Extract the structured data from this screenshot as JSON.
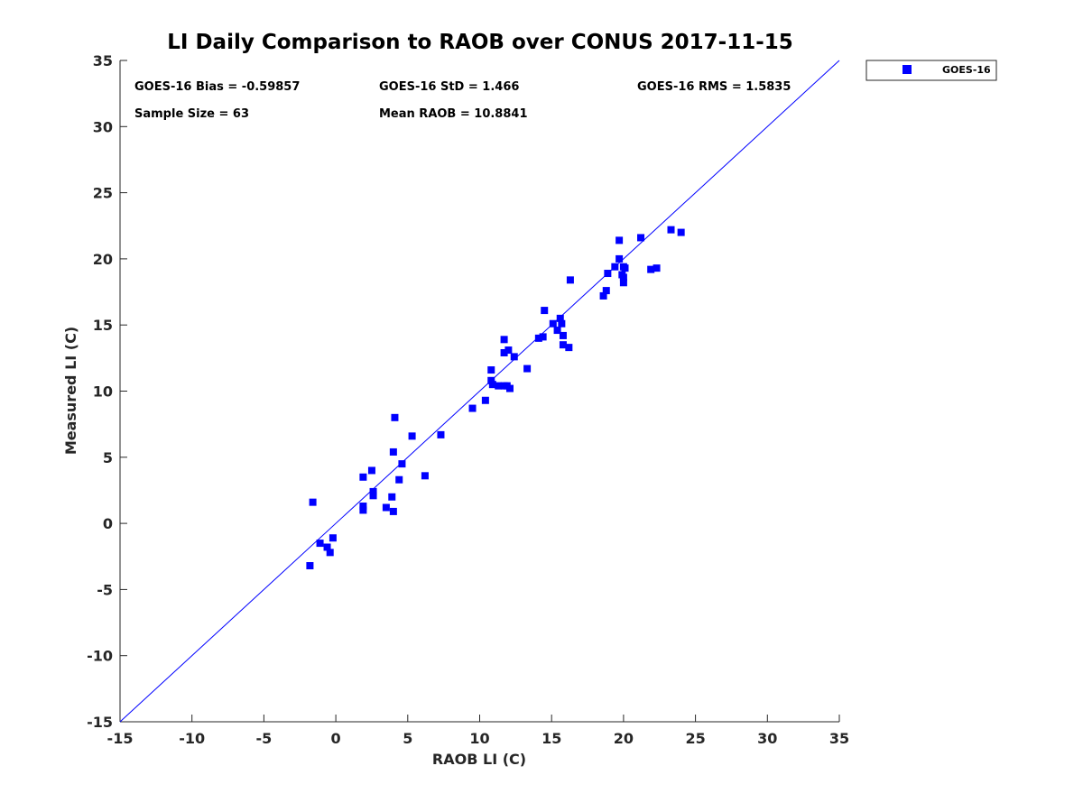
{
  "chart_data": {
    "type": "scatter",
    "title": "LI Daily Comparison to RAOB over CONUS 2017-11-15",
    "xlabel": "RAOB LI (C)",
    "ylabel": "Measured LI (C)",
    "xlim": [
      -15,
      35
    ],
    "ylim": [
      -15,
      35
    ],
    "xticks": [
      "-15",
      "-10",
      "-5",
      "0",
      "5",
      "10",
      "15",
      "20",
      "25",
      "30",
      "35"
    ],
    "yticks": [
      "-15",
      "-10",
      "-5",
      "0",
      "5",
      "10",
      "15",
      "20",
      "25",
      "30",
      "35"
    ],
    "legend": {
      "position": "top-right-outside",
      "entries": [
        "GOES-16"
      ]
    },
    "stats": {
      "bias": "GOES-16 Bias = -0.59857",
      "std": "GOES-16 StD = 1.466",
      "rms": "GOES-16 RMS = 1.5835",
      "sample_size": "Sample Size = 63",
      "mean_raob": "Mean RAOB = 10.8841"
    },
    "reference_line": {
      "from": [
        -15,
        -15
      ],
      "to": [
        35,
        35
      ],
      "color": "#0000ff"
    },
    "series": [
      {
        "name": "GOES-16",
        "color": "#0000ff",
        "marker": "square",
        "points": [
          [
            -1.6,
            1.6
          ],
          [
            -1.8,
            -3.2
          ],
          [
            -1.1,
            -1.5
          ],
          [
            -0.6,
            -1.8
          ],
          [
            -0.4,
            -2.2
          ],
          [
            -0.2,
            -1.1
          ],
          [
            1.9,
            3.5
          ],
          [
            1.9,
            1.3
          ],
          [
            1.9,
            1.0
          ],
          [
            2.5,
            4.0
          ],
          [
            2.6,
            2.4
          ],
          [
            2.6,
            2.1
          ],
          [
            3.5,
            1.2
          ],
          [
            3.9,
            2.0
          ],
          [
            4.0,
            5.4
          ],
          [
            4.0,
            0.9
          ],
          [
            4.1,
            8.0
          ],
          [
            4.4,
            3.3
          ],
          [
            4.6,
            4.5
          ],
          [
            5.3,
            6.6
          ],
          [
            6.2,
            3.6
          ],
          [
            7.3,
            6.7
          ],
          [
            9.5,
            8.7
          ],
          [
            10.4,
            9.3
          ],
          [
            10.8,
            11.6
          ],
          [
            10.8,
            10.8
          ],
          [
            10.9,
            10.5
          ],
          [
            11.3,
            10.4
          ],
          [
            11.7,
            10.4
          ],
          [
            11.7,
            13.9
          ],
          [
            11.7,
            12.9
          ],
          [
            11.9,
            10.4
          ],
          [
            12.0,
            13.1
          ],
          [
            12.1,
            10.2
          ],
          [
            12.4,
            12.6
          ],
          [
            13.3,
            11.7
          ],
          [
            14.1,
            14.0
          ],
          [
            14.4,
            14.1
          ],
          [
            14.5,
            16.1
          ],
          [
            15.1,
            15.1
          ],
          [
            15.4,
            14.6
          ],
          [
            15.6,
            15.5
          ],
          [
            15.7,
            15.1
          ],
          [
            15.8,
            14.2
          ],
          [
            15.8,
            13.5
          ],
          [
            16.2,
            13.3
          ],
          [
            16.3,
            18.4
          ],
          [
            18.6,
            17.2
          ],
          [
            18.8,
            17.6
          ],
          [
            18.9,
            18.9
          ],
          [
            19.4,
            19.4
          ],
          [
            19.7,
            21.4
          ],
          [
            19.7,
            20.0
          ],
          [
            19.9,
            18.8
          ],
          [
            20.0,
            18.6
          ],
          [
            20.0,
            18.2
          ],
          [
            20.1,
            19.3
          ],
          [
            21.2,
            21.6
          ],
          [
            21.9,
            19.2
          ],
          [
            22.3,
            19.3
          ],
          [
            23.3,
            22.2
          ],
          [
            24.0,
            22.0
          ],
          [
            20.0,
            19.4
          ]
        ]
      }
    ]
  }
}
